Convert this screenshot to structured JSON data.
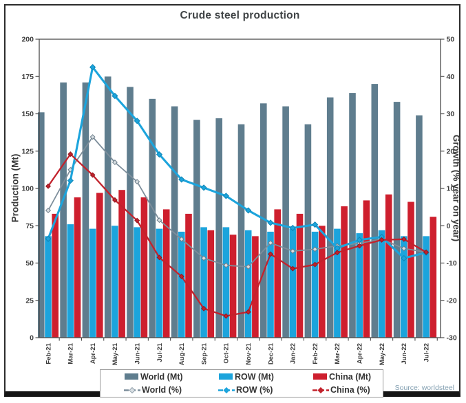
{
  "chart_data": {
    "type": "bar",
    "subtype": "combo-bar-line-dual-axis",
    "title": "Crude steel production",
    "ylabel_left": "Production (Mt)",
    "ylabel_right": "Growth (% year on year)",
    "source": "Source: worldsteel",
    "grid": false,
    "legend_position": "bottom",
    "categories": [
      "Feb-21",
      "Mar-21",
      "Apr-21",
      "May-21",
      "Jun-21",
      "Jul-21",
      "Aug-21",
      "Sep-21",
      "Oct-21",
      "Nov-21",
      "Dec-21",
      "Jan-22",
      "Feb-22",
      "Mar-22",
      "Apr-22",
      "May-22",
      "Jun-22",
      "Jul-22"
    ],
    "axis_left": {
      "min": 0,
      "max": 200,
      "step": 25
    },
    "axis_right": {
      "min": -30,
      "max": 50,
      "step": 10
    },
    "bar_series": [
      {
        "name": "World (Mt)",
        "color": "#5f7d8e",
        "values": [
          151,
          171,
          171,
          175,
          168,
          160,
          155,
          146,
          147,
          143,
          157,
          155,
          143,
          161,
          164,
          170,
          158,
          149
        ]
      },
      {
        "name": "ROW (Mt)",
        "color": "#1ca4dc",
        "values": [
          68,
          76,
          73,
          75,
          74,
          73,
          71,
          74,
          74,
          72,
          71,
          73,
          71,
          73,
          70,
          72,
          68,
          68
        ]
      },
      {
        "name": "China (Mt)",
        "color": "#ce1f2e",
        "values": [
          83,
          94,
          97,
          99,
          94,
          86,
          83,
          72,
          69,
          68,
          86,
          83,
          75,
          88,
          92,
          96,
          91,
          81
        ]
      }
    ],
    "line_series": [
      {
        "name": "World (%)",
        "color": "#7d8e9b",
        "marker_fill": "#d9dfe3",
        "marker_stroke": "#6d7e8a",
        "width": 1.8,
        "values": [
          4.1,
          15.0,
          23.8,
          17.0,
          11.8,
          1.5,
          -3.6,
          -8.7,
          -10.6,
          -11.0,
          -4.6,
          -6.8,
          -6.3,
          -5.4,
          -4.7,
          -3.6,
          -6.1,
          -7.1
        ]
      },
      {
        "name": "ROW (%)",
        "color": "#1ca4dc",
        "marker_fill": "#1ca4dc",
        "marker_stroke": "#0e85b5",
        "width": 3.1,
        "values": [
          -3.5,
          12.1,
          42.5,
          34.8,
          28.1,
          19.1,
          12.4,
          10.2,
          8.0,
          4.1,
          0.8,
          -0.6,
          0.3,
          -6.0,
          -3.8,
          -3.0,
          -8.7,
          -7.2
        ]
      },
      {
        "name": "China (%)",
        "color": "#c2222c",
        "marker_fill": "#c2222c",
        "marker_stroke": "#911820",
        "width": 2.3,
        "values": [
          10.6,
          19.2,
          13.6,
          6.9,
          1.4,
          -8.5,
          -13.6,
          -22.2,
          -24.2,
          -23.1,
          -7.6,
          -11.5,
          -10.4,
          -7.2,
          -5.4,
          -3.8,
          -3.6,
          -7.1
        ]
      }
    ],
    "legend_items": [
      {
        "label": "World (Mt)",
        "marker": "bar",
        "color": "#5f7d8e"
      },
      {
        "label": "ROW (Mt)",
        "marker": "bar",
        "color": "#1ca4dc"
      },
      {
        "label": "China (Mt)",
        "marker": "bar",
        "color": "#ce1f2e"
      },
      {
        "label": "World (%)",
        "marker": "line",
        "color": "#7d8e9b",
        "marker_fill": "#d9dfe3"
      },
      {
        "label": "ROW (%)",
        "marker": "line",
        "color": "#1ca4dc",
        "marker_fill": "#1ca4dc"
      },
      {
        "label": "China (%)",
        "marker": "line",
        "color": "#c2222c",
        "marker_fill": "#c2222c"
      }
    ],
    "colors": {
      "axis": "#4c4c4c",
      "tick_text": "#3d3d3d",
      "title_text": "#3f4345",
      "source_text": "#84a0b2"
    }
  }
}
